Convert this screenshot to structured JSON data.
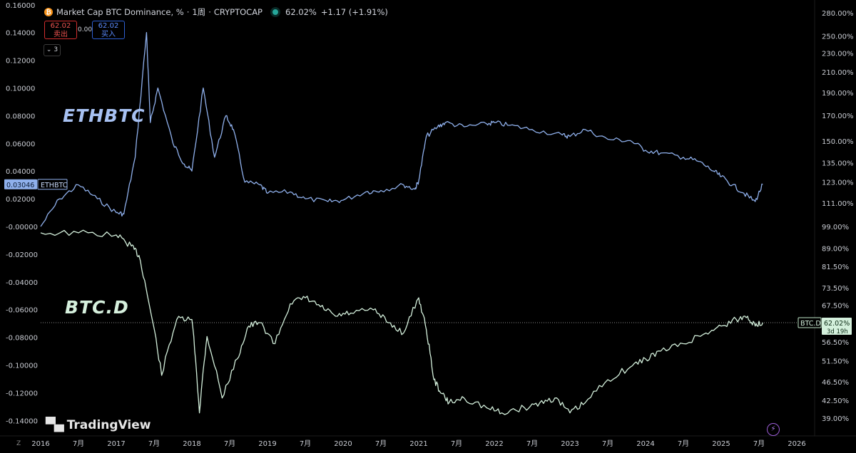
{
  "header": {
    "symbol_icon": "bitcoin-icon",
    "title": "Market Cap BTC Dominance, %",
    "separator": "·",
    "interval": "1周",
    "exchange": "CRYPTOCAP",
    "last": "62.02%",
    "change": "+1.17 (+1.91%)"
  },
  "trade": {
    "sell_price": "62.02",
    "sell_label": "卖出",
    "spread": "0.00",
    "buy_price": "62.02",
    "buy_label": "买入",
    "indicator_count": "3"
  },
  "annotations": {
    "eth": "ETHBTC",
    "btc": "BTC.D"
  },
  "logo": "TradingView",
  "zoom_icon": "Z",
  "colors": {
    "eth": "#8fb0ec",
    "btc": "#d4f0dc",
    "background": "#000000"
  },
  "chart_data": {
    "type": "line",
    "x_ticks": [
      "2016",
      "7月",
      "2017",
      "7月",
      "2018",
      "7月",
      "2019",
      "7月",
      "2020",
      "7月",
      "2021",
      "7月",
      "2022",
      "7月",
      "2023",
      "7月",
      "2024",
      "7月",
      "2025",
      "7月",
      "2026"
    ],
    "left_axis": {
      "ticks": [
        "0.16000",
        "0.14000",
        "0.12000",
        "0.10000",
        "0.08000",
        "0.06000",
        "0.04000",
        "0.02000",
        "-0.00000",
        "-0.02000",
        "-0.04000",
        "-0.06000",
        "-0.08000",
        "-0.10000",
        "-0.12000",
        "-0.14000"
      ],
      "values": [
        0.16,
        0.14,
        0.12,
        0.1,
        0.08,
        0.06,
        0.04,
        0.02,
        0,
        -0.02,
        -0.04,
        -0.06,
        -0.08,
        -0.1,
        -0.12,
        -0.14
      ]
    },
    "right_axis": {
      "ticks": [
        "280.00%",
        "250.00%",
        "230.00%",
        "210.00%",
        "190.00%",
        "170.00%",
        "150.00%",
        "135.00%",
        "123.00%",
        "111.00%",
        "99.00%",
        "89.00%",
        "81.50%",
        "73.50%",
        "67.50%",
        "62.00%",
        "56.50%",
        "51.50%",
        "46.50%",
        "42.50%",
        "39.00%"
      ],
      "values": [
        280,
        250,
        230,
        210,
        190,
        170,
        150,
        135,
        123,
        111,
        99,
        89,
        81.5,
        73.5,
        67.5,
        62,
        56.5,
        51.5,
        46.5,
        42.5,
        39
      ],
      "log_scale": true
    },
    "series": [
      {
        "name": "ETHBTC",
        "axis": "left",
        "last_value": "0.03046",
        "x": [
          2016.0,
          2016.25,
          2016.5,
          2016.75,
          2017.0,
          2017.1,
          2017.25,
          2017.4,
          2017.45,
          2017.55,
          2017.75,
          2017.9,
          2018.0,
          2018.15,
          2018.3,
          2018.45,
          2018.55,
          2018.7,
          2018.9,
          2019.0,
          2019.3,
          2019.5,
          2019.8,
          2020.0,
          2020.3,
          2020.5,
          2020.8,
          2020.95,
          2021.0,
          2021.1,
          2021.25,
          2021.35,
          2021.6,
          2021.9,
          2022.0,
          2022.2,
          2022.5,
          2022.9,
          2023.0,
          2023.2,
          2023.5,
          2023.8,
          2024.0,
          2024.2,
          2024.5,
          2024.7,
          2024.9,
          2025.0,
          2025.15,
          2025.3,
          2025.45,
          2025.55
        ],
        "y": [
          0.0,
          0.02,
          0.03,
          0.02,
          0.01,
          0.009,
          0.05,
          0.14,
          0.075,
          0.1,
          0.06,
          0.045,
          0.04,
          0.1,
          0.05,
          0.08,
          0.07,
          0.032,
          0.03,
          0.024,
          0.025,
          0.02,
          0.018,
          0.019,
          0.025,
          0.026,
          0.03,
          0.027,
          0.033,
          0.065,
          0.072,
          0.075,
          0.072,
          0.074,
          0.075,
          0.073,
          0.07,
          0.066,
          0.065,
          0.07,
          0.063,
          0.062,
          0.055,
          0.053,
          0.05,
          0.047,
          0.04,
          0.036,
          0.03,
          0.024,
          0.018,
          0.03046
        ]
      },
      {
        "name": "BTC.D",
        "axis": "right",
        "last_value": "62.02%",
        "last_value_note": "3d 19h",
        "x": [
          2016.0,
          2016.5,
          2017.0,
          2017.2,
          2017.3,
          2017.45,
          2017.6,
          2017.8,
          2018.0,
          2018.1,
          2018.2,
          2018.4,
          2018.6,
          2018.75,
          2018.9,
          2019.1,
          2019.3,
          2019.5,
          2019.7,
          2019.9,
          2020.1,
          2020.4,
          2020.6,
          2020.8,
          2021.0,
          2021.1,
          2021.2,
          2021.3,
          2021.4,
          2021.6,
          2021.9,
          2022.1,
          2022.4,
          2022.6,
          2022.8,
          2023.0,
          2023.2,
          2023.5,
          2023.8,
          2024.0,
          2024.2,
          2024.5,
          2024.8,
          2025.0,
          2025.2,
          2025.35,
          2025.45,
          2025.55
        ],
        "y": [
          96,
          96,
          95,
          90,
          86,
          66,
          48,
          63,
          63,
          40,
          58,
          43,
          52,
          61,
          62,
          56,
          68,
          70,
          67,
          64,
          65,
          66,
          62,
          59,
          70,
          60,
          47,
          44,
          42,
          43,
          41,
          40,
          41,
          42,
          43,
          40,
          42,
          47,
          50,
          52,
          54,
          56,
          59,
          61,
          63,
          64,
          61,
          62.02
        ]
      }
    ],
    "horizontal_line": {
      "axis": "right",
      "value": 62.02
    },
    "grid": false,
    "legend": "none"
  }
}
